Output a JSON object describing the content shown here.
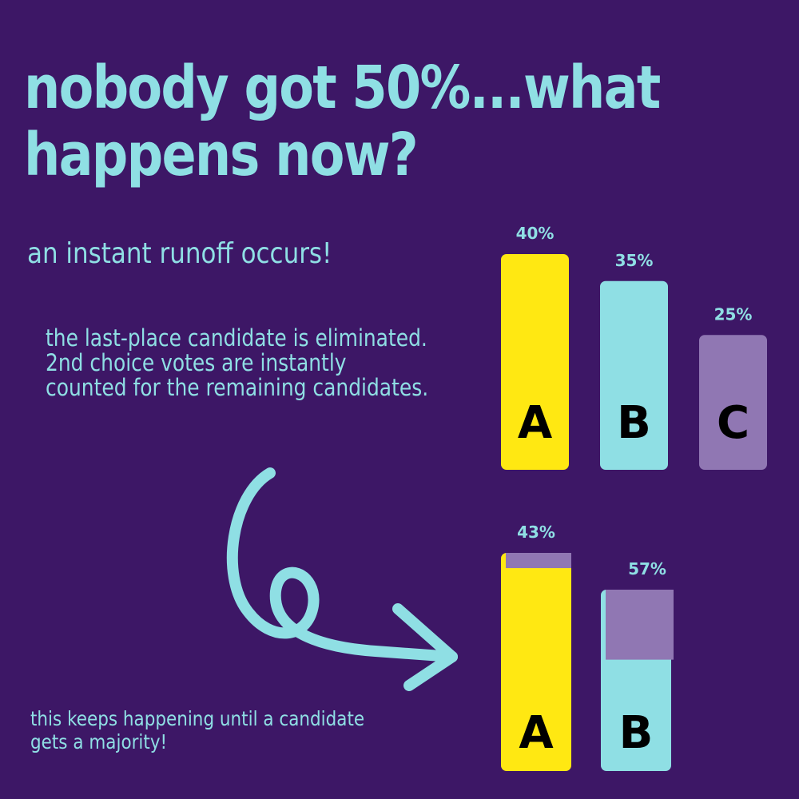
{
  "headline": {
    "line1": "nobody got 50%...what",
    "line2": "happens now?"
  },
  "subhead": "an instant runoff occurs!",
  "explanation": "the last-place candidate is eliminated. 2nd choice votes are instantly counted for the remaining candidates.",
  "footer": "this keeps happening until a candidate gets a majority!",
  "colors": {
    "background": "#3d1766",
    "text": "#8fdfe4",
    "candidate_a": "#ffe812",
    "candidate_b": "#8fdfe4",
    "candidate_c": "#9077b3",
    "transferred_votes": "#9077b3"
  },
  "arrow_icon": "curly-arrow-icon",
  "chart_data": [
    {
      "type": "bar",
      "title": "",
      "categories": [
        "A",
        "B",
        "C"
      ],
      "values": [
        40,
        35,
        25
      ],
      "labels": [
        "40%",
        "35%",
        "25%"
      ],
      "ylim": [
        0,
        50
      ],
      "grid": false
    },
    {
      "type": "bar",
      "title": "",
      "categories": [
        "A",
        "B"
      ],
      "values": [
        43,
        57
      ],
      "labels": [
        "43%",
        "57%"
      ],
      "stacked_transfer": [
        3,
        22
      ],
      "grid": false
    }
  ]
}
